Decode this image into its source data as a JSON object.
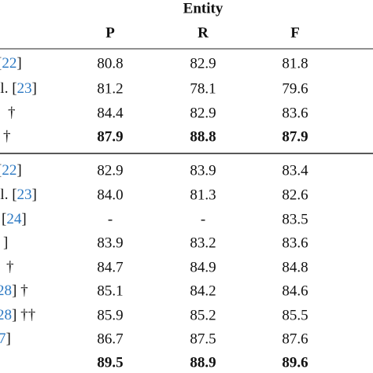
{
  "table": {
    "group_header": "Entity",
    "columns": [
      "P",
      "R",
      "F"
    ],
    "groups": [
      {
        "rows": [
          {
            "label": [
              {
                "text": "["
              },
              {
                "text": "22",
                "ref": true
              },
              {
                "text": "]"
              }
            ],
            "cells": [
              "80.8",
              "82.9",
              "81.8"
            ]
          },
          {
            "label": [
              {
                "text": "al. ["
              },
              {
                "text": "23",
                "ref": true
              },
              {
                "text": "]"
              }
            ],
            "cells": [
              "81.2",
              "78.1",
              "79.6"
            ]
          },
          {
            "label": [
              {
                "text": "†"
              }
            ],
            "cells": [
              "84.4",
              "82.9",
              "83.6"
            ]
          },
          {
            "label": [
              {
                "text": "†"
              }
            ],
            "cells": [
              "87.9",
              "88.8",
              "87.9"
            ],
            "bold": true
          }
        ]
      },
      {
        "rows": [
          {
            "label": [
              {
                "text": "["
              },
              {
                "text": "22",
                "ref": true
              },
              {
                "text": "]"
              }
            ],
            "cells": [
              "82.9",
              "83.9",
              "83.4"
            ]
          },
          {
            "label": [
              {
                "text": "al. ["
              },
              {
                "text": "23",
                "ref": true
              },
              {
                "text": "]"
              }
            ],
            "cells": [
              "84.0",
              "81.3",
              "82.6"
            ]
          },
          {
            "label": [
              {
                "text": "["
              },
              {
                "text": "24",
                "ref": true
              },
              {
                "text": "]"
              }
            ],
            "cells": [
              "-",
              "-",
              "83.5"
            ]
          },
          {
            "label": [
              {
                "text": "]"
              }
            ],
            "cells": [
              "83.9",
              "83.2",
              "83.6"
            ]
          },
          {
            "label": [
              {
                "text": "†"
              }
            ],
            "cells": [
              "84.7",
              "84.9",
              "84.8"
            ]
          },
          {
            "label": [
              {
                "text": "28",
                "ref": true
              },
              {
                "text": "] †"
              }
            ],
            "cells": [
              "85.1",
              "84.2",
              "84.6"
            ]
          },
          {
            "label": [
              {
                "text": "28",
                "ref": true
              },
              {
                "text": "] ††"
              }
            ],
            "cells": [
              "85.9",
              "85.2",
              "85.5"
            ]
          },
          {
            "label": [
              {
                "text": "7",
                "ref": true
              },
              {
                "text": "]"
              }
            ],
            "cells": [
              "86.7",
              "87.5",
              "87.6"
            ]
          },
          {
            "cells": [
              "89.5",
              "88.9",
              "89.6"
            ],
            "bold": true
          }
        ]
      }
    ]
  }
}
